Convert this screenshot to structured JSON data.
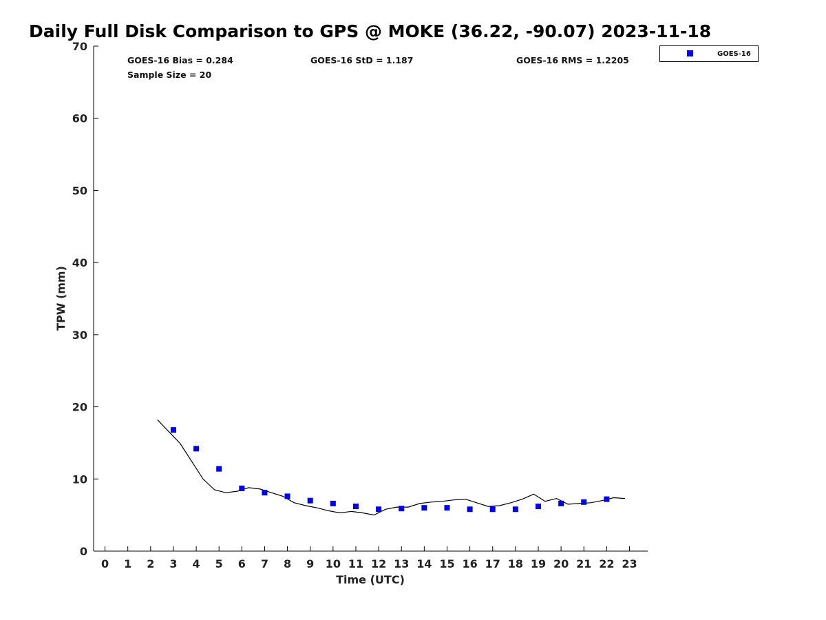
{
  "chart_data": {
    "type": "scatter",
    "title": "Daily Full Disk Comparison to GPS @ MOKE (36.22, -90.07) 2023-11-18",
    "xlabel": "Time (UTC)",
    "ylabel": "TPW (mm)",
    "xlim": [
      -0.5,
      23.8
    ],
    "ylim": [
      0,
      70
    ],
    "x_ticks": [
      "0",
      "1",
      "2",
      "3",
      "4",
      "5",
      "6",
      "7",
      "8",
      "9",
      "10",
      "11",
      "12",
      "13",
      "14",
      "15",
      "16",
      "17",
      "18",
      "19",
      "20",
      "21",
      "22",
      "23"
    ],
    "y_ticks": [
      "0",
      "10",
      "20",
      "30",
      "40",
      "50",
      "60",
      "70"
    ],
    "grid": false,
    "legend_position": "top-right, outside plot",
    "stats": {
      "bias": "GOES-16 Bias = 0.284",
      "sample": "Sample Size = 20",
      "std": "GOES-16 StD = 1.187",
      "rms": "GOES-16 RMS = 1.2205"
    },
    "series": [
      {
        "name": "GOES-16",
        "type": "scatter",
        "marker": "square",
        "color": "#0000ee",
        "x": [
          3,
          4,
          5,
          6,
          7,
          8,
          9,
          10,
          11,
          12,
          13,
          14,
          15,
          16,
          17,
          18,
          19,
          20,
          21,
          22
        ],
        "y": [
          16.8,
          14.2,
          11.4,
          8.7,
          8.1,
          7.6,
          7.0,
          6.6,
          6.2,
          5.8,
          5.9,
          6.0,
          6.0,
          5.8,
          5.8,
          5.8,
          6.2,
          6.6,
          6.8,
          7.2
        ]
      },
      {
        "type": "line",
        "color": "#000000",
        "x": [
          2.3,
          3.3,
          4.3,
          4.8,
          5.3,
          5.8,
          6.3,
          6.8,
          7.3,
          7.8,
          8.3,
          8.8,
          9.3,
          9.8,
          10.3,
          10.8,
          11.3,
          11.8,
          12.3,
          12.8,
          13.3,
          13.8,
          14.3,
          14.8,
          15.3,
          15.8,
          16.3,
          16.8,
          17.3,
          17.8,
          18.3,
          18.8,
          19.3,
          19.8,
          20.3,
          20.8,
          21.3,
          21.8,
          22.3,
          22.8
        ],
        "y": [
          18.2,
          14.9,
          10.0,
          8.5,
          8.1,
          8.3,
          8.8,
          8.6,
          8.1,
          7.6,
          6.7,
          6.3,
          6.0,
          5.6,
          5.3,
          5.5,
          5.3,
          5.0,
          5.8,
          6.1,
          6.1,
          6.6,
          6.8,
          6.9,
          7.1,
          7.2,
          6.7,
          6.2,
          6.3,
          6.7,
          7.2,
          7.9,
          6.9,
          7.3,
          6.5,
          6.6,
          6.7,
          7.0,
          7.4,
          7.3
        ]
      }
    ]
  }
}
